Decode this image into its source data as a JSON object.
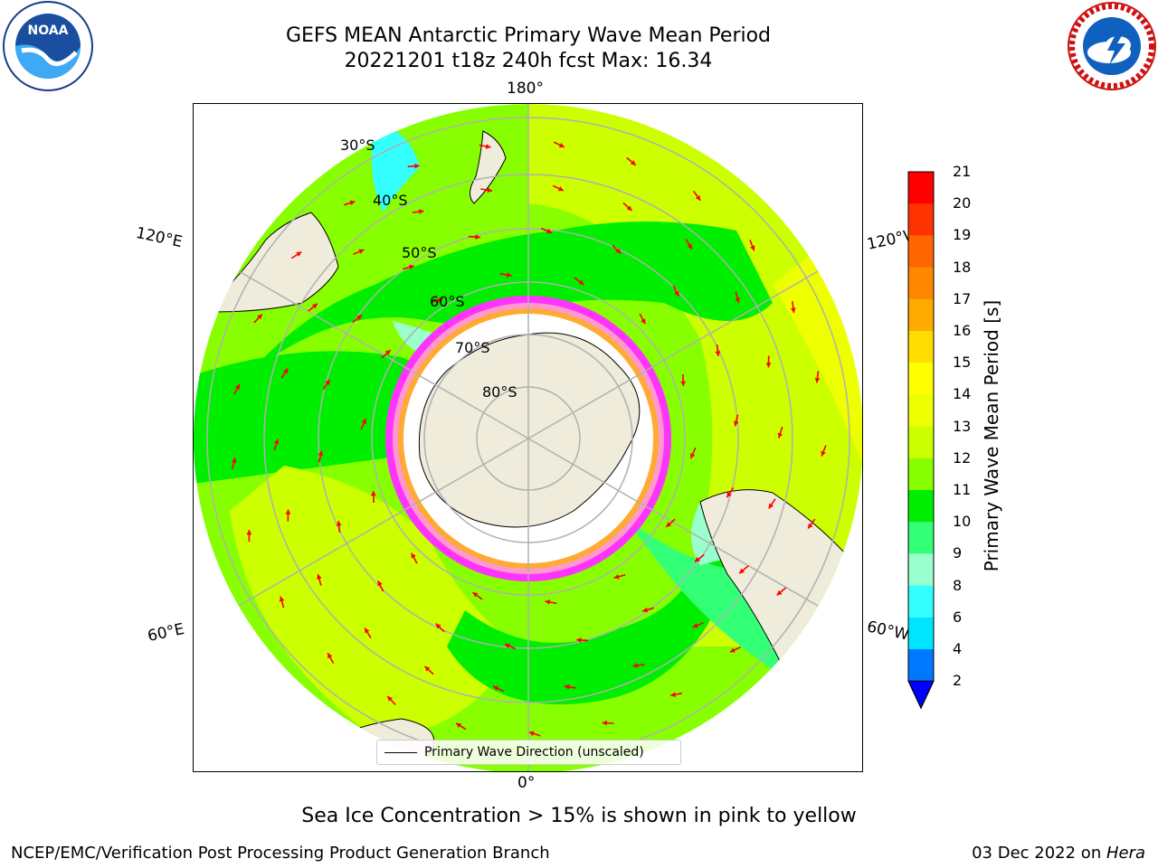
{
  "header": {
    "title_line1": "GEFS MEAN Antarctic Primary Wave Mean Period",
    "title_line2": "20221201 t18z 240h fcst   Max: 16.34"
  },
  "logos": {
    "left_icon": "noaa-logo-icon",
    "left_text": "NOAA",
    "right_icon": "nws-logo-icon",
    "right_text": "NATIONAL WEATHER SERVICE"
  },
  "map": {
    "projection": "south-polar-stereographic",
    "longitude_labels": {
      "top": "180°",
      "upper_left": "120°E",
      "upper_right": "120°W",
      "lower_left": "60°E",
      "lower_right": "60°W",
      "bottom": "0°"
    },
    "latitude_labels": [
      "30°S",
      "40°S",
      "50°S",
      "60°S",
      "70°S",
      "80°S"
    ],
    "arrow_color": "#ff0000",
    "land_color": "#efecdc",
    "sea_ice_colors": [
      "#ff33ff",
      "#ff99cc",
      "#ffaa33",
      "#ffffff"
    ]
  },
  "legend": {
    "label": "Primary Wave Direction (unscaled)"
  },
  "colorbar": {
    "label": "Primary Wave Mean Period [s]",
    "ticks": [
      "21",
      "20",
      "19",
      "18",
      "17",
      "16",
      "15",
      "14",
      "13",
      "12",
      "11",
      "10",
      "9",
      "8",
      "6",
      "4",
      "2"
    ],
    "colors": [
      "#ff0000",
      "#ff3300",
      "#ff6600",
      "#ff8800",
      "#ffaa00",
      "#ffdd00",
      "#ffff00",
      "#eeff00",
      "#ccff00",
      "#88ff00",
      "#00ee00",
      "#33ff77",
      "#99ffcc",
      "#33ffff",
      "#00e5ff",
      "#0077ff"
    ],
    "extend_color": "#0000ff"
  },
  "notes": {
    "sea_ice": "Sea Ice Concentration > 15% is shown in pink to yellow"
  },
  "footer": {
    "left": "NCEP/EMC/Verification Post Processing Product Generation Branch",
    "date": "03 Dec 2022 on ",
    "host": "Hera"
  }
}
